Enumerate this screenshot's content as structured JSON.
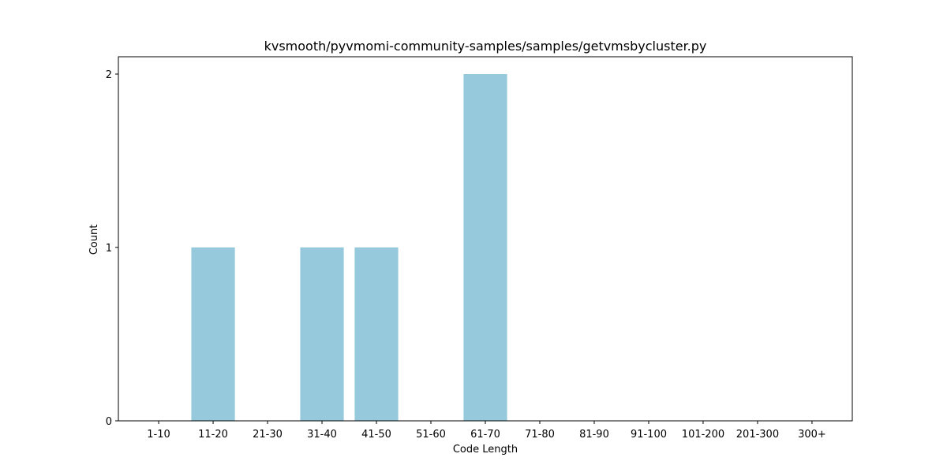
{
  "chart_data": {
    "type": "bar",
    "title": "kvsmooth/pyvmomi-community-samples/samples/getvmsbycluster.py",
    "xlabel": "Code Length",
    "ylabel": "Count",
    "categories": [
      "1-10",
      "11-20",
      "21-30",
      "31-40",
      "41-50",
      "51-60",
      "61-70",
      "71-80",
      "81-90",
      "91-100",
      "101-200",
      "201-300",
      "300+"
    ],
    "values": [
      0,
      1,
      0,
      1,
      1,
      0,
      2,
      0,
      0,
      0,
      0,
      0,
      0
    ],
    "yticks": [
      "0",
      "1",
      "2"
    ],
    "ylim": [
      0,
      2.1
    ],
    "grid": false,
    "bar_color": "#96c9dc"
  }
}
